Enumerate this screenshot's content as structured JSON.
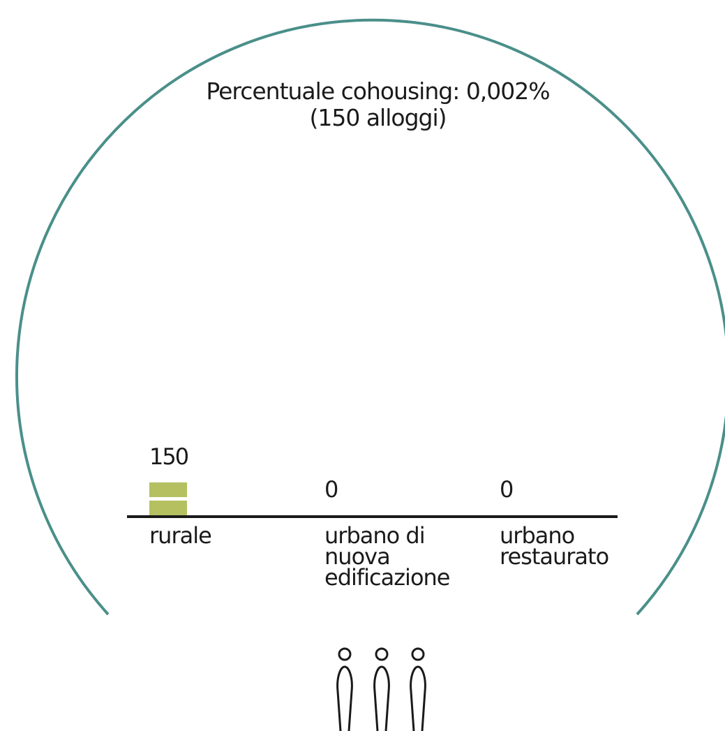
{
  "colors": {
    "circle": "#4a8f8a",
    "bar": "#b5c060",
    "baseline": "#1a1a1a",
    "text": "#1a1a1a"
  },
  "icon": "three-people-icon",
  "chart_data": {
    "type": "bar",
    "title": "Percentuale cohousing:",
    "title_value": "0,002%",
    "subtitle": "(150 alloggi)",
    "categories": [
      "rurale",
      "urbano di nuova edificazione",
      "urbano restaurato"
    ],
    "category_lines": [
      [
        "rurale"
      ],
      [
        "urbano di",
        "nuova",
        "edificazione"
      ],
      [
        "urbano",
        "restaurato"
      ]
    ],
    "values": [
      150,
      0,
      0
    ],
    "value_labels": [
      "150",
      "0",
      "0"
    ],
    "units_per_segment": 75,
    "grid": false,
    "legend": "none"
  }
}
